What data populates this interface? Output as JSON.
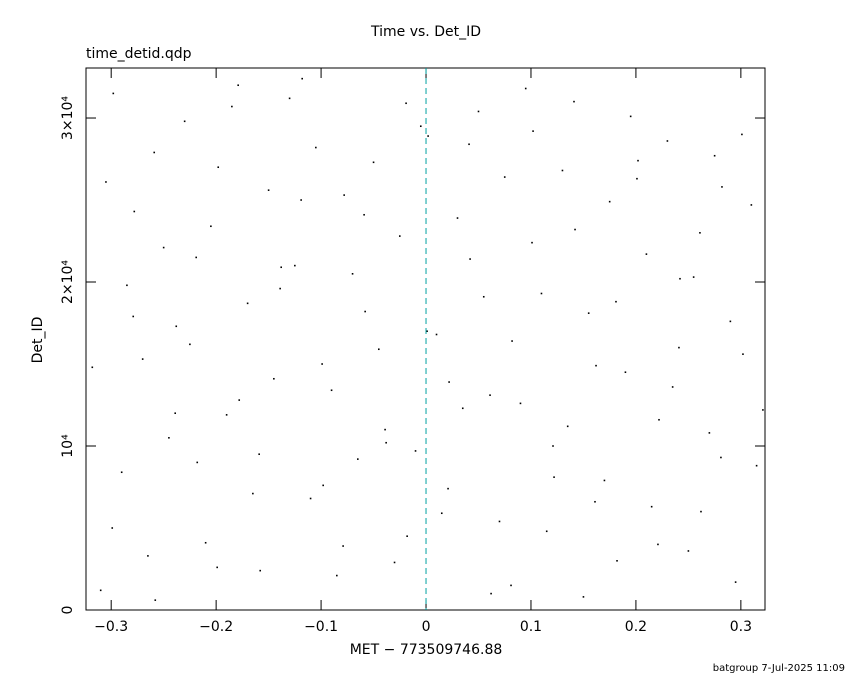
{
  "chart_data": {
    "type": "scatter",
    "title": "Time vs. Det_ID",
    "subtitle": "time_detid.qdp",
    "x_label": "MET − 773509746.88",
    "y_label": "Det_ID",
    "footer": "batgroup  7-Jul-2025 11:09",
    "xlim": [
      -0.324,
      0.323
    ],
    "ylim": [
      0,
      33050
    ],
    "xticks": [
      {
        "value": -0.3,
        "label": "−0.3"
      },
      {
        "value": -0.2,
        "label": "−0.2"
      },
      {
        "value": -0.1,
        "label": "−0.1"
      },
      0,
      0.1,
      0.2,
      0.3
    ],
    "yticks": [
      0,
      {
        "value": 10000,
        "label": "10⁴"
      },
      {
        "value": 20000,
        "label": "2×10⁴"
      },
      {
        "value": 30000,
        "label": "3×10⁴"
      }
    ],
    "vline": {
      "x": 0,
      "color": "#00a0a0"
    },
    "color": "#000000",
    "x": [
      -0.31,
      -0.29,
      -0.27,
      -0.25,
      -0.23,
      -0.21,
      -0.19,
      -0.17,
      -0.15,
      -0.13,
      -0.11,
      -0.09,
      -0.07,
      -0.05,
      -0.03,
      -0.01,
      0.01,
      0.03,
      0.05,
      0.07,
      0.09,
      0.11,
      0.13,
      0.15,
      0.17,
      0.19,
      0.21,
      0.23,
      0.25,
      0.27,
      0.29,
      0.31,
      -0.305,
      -0.285,
      -0.265,
      -0.245,
      -0.225,
      -0.205,
      -0.185,
      -0.165,
      -0.145,
      -0.125,
      -0.105,
      -0.085,
      -0.065,
      -0.045,
      -0.025,
      -0.005,
      0.015,
      0.035,
      0.055,
      0.075,
      0.095,
      0.115,
      0.135,
      0.155,
      0.175,
      0.195,
      0.215,
      0.235,
      0.255,
      0.275,
      0.295,
      0.315,
      -0.318,
      -0.298,
      -0.278,
      -0.258,
      -0.238,
      -0.218,
      -0.198,
      -0.178,
      -0.158,
      -0.138,
      -0.118,
      -0.098,
      -0.078,
      -0.058,
      -0.038,
      -0.018,
      0.002,
      0.022,
      0.042,
      0.062,
      0.082,
      0.102,
      0.122,
      0.142,
      0.162,
      0.182,
      0.202,
      0.222,
      0.242,
      0.262,
      0.282,
      0.302,
      -0.299,
      -0.279,
      -0.259,
      -0.239,
      -0.219,
      -0.199,
      -0.179,
      -0.159,
      -0.139,
      -0.119,
      -0.099,
      -0.079,
      -0.059,
      -0.039,
      -0.019,
      0.001,
      0.021,
      0.041,
      0.061,
      0.081,
      0.101,
      0.121,
      0.141,
      0.161,
      0.181,
      0.201,
      0.221,
      0.241,
      0.261,
      0.281,
      0.301,
      0.321
    ],
    "values": [
      1200,
      8400,
      15300,
      22100,
      29800,
      4100,
      11900,
      18700,
      25600,
      31200,
      6800,
      13400,
      20500,
      27300,
      2900,
      9700,
      16800,
      23900,
      30400,
      5400,
      12600,
      19300,
      26800,
      800,
      7900,
      14500,
      21700,
      28600,
      3600,
      10800,
      17600,
      24700,
      26100,
      19800,
      3300,
      10500,
      16200,
      23400,
      30700,
      7100,
      14100,
      21000,
      28200,
      2100,
      9200,
      15900,
      22800,
      29500,
      5900,
      12300,
      19100,
      26400,
      31800,
      4800,
      11200,
      18100,
      24900,
      30100,
      6300,
      13600,
      20300,
      27700,
      1700,
      8800,
      14800,
      31500,
      24300,
      600,
      17300,
      9000,
      27000,
      12800,
      2400,
      20900,
      32400,
      7600,
      25300,
      18200,
      10200,
      4500,
      28900,
      13900,
      21400,
      1000,
      16400,
      29200,
      8100,
      23200,
      14900,
      3000,
      27400,
      11600,
      20200,
      6000,
      25800,
      15600,
      5000,
      17900,
      27900,
      12000,
      21500,
      2600,
      32000,
      9500,
      19600,
      25000,
      15000,
      3900,
      24100,
      11000,
      30900,
      17000,
      7400,
      28400,
      13100,
      1500,
      22400,
      10000,
      31000,
      6600,
      18800,
      26300,
      4000,
      16000,
      23000,
      9300,
      29000,
      12200
    ]
  }
}
